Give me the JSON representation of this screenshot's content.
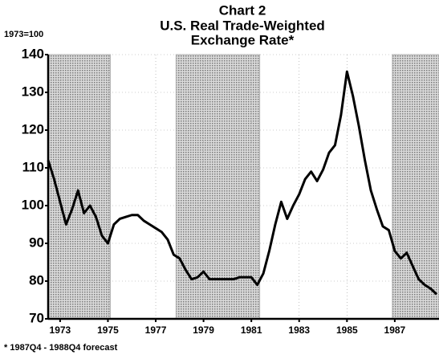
{
  "chart_data": {
    "type": "line",
    "title": "Chart 2",
    "subtitle": [
      "U.S. Real Trade-Weighted",
      "Exchange Rate*"
    ],
    "y_label": "1973=100",
    "footnote": "* 1987Q4 - 1988Q4 forecast",
    "x": [
      1972.5,
      1972.75,
      1973,
      1973.25,
      1973.5,
      1973.75,
      1974,
      1974.25,
      1974.5,
      1974.75,
      1975,
      1975.25,
      1975.5,
      1975.75,
      1976,
      1976.25,
      1976.5,
      1976.75,
      1977,
      1977.25,
      1977.5,
      1977.75,
      1978,
      1978.25,
      1978.5,
      1978.75,
      1979,
      1979.25,
      1979.5,
      1979.75,
      1980,
      1980.25,
      1980.5,
      1980.75,
      1981,
      1981.25,
      1981.5,
      1981.75,
      1982,
      1982.25,
      1982.5,
      1982.75,
      1983,
      1983.25,
      1983.5,
      1983.75,
      1984,
      1984.25,
      1984.5,
      1984.75,
      1985,
      1985.25,
      1985.5,
      1985.75,
      1986,
      1986.25,
      1986.5,
      1986.75,
      1987,
      1987.25,
      1987.5,
      1987.75,
      1988,
      1988.25,
      1988.5,
      1988.75
    ],
    "series": [
      {
        "color": "#000000",
        "values": [
          112,
          107,
          101,
          95,
          99,
          104,
          98,
          100,
          97,
          92,
          90,
          95,
          96.5,
          97,
          97.5,
          97.5,
          96,
          95,
          94,
          93,
          91,
          87,
          86,
          83,
          80.5,
          81,
          82.5,
          80.5,
          80.5,
          80.5,
          80.5,
          80.5,
          81,
          81,
          81,
          79,
          82,
          88,
          95,
          101,
          96.5,
          100,
          103,
          107,
          109,
          106.5,
          109.5,
          114,
          116,
          124,
          135.5,
          129,
          121,
          112,
          104,
          99,
          94.5,
          93.5,
          88,
          86,
          87.5,
          84,
          80.5,
          79,
          78,
          76.5
        ]
      }
    ],
    "shaded_periods": [
      [
        1972.5,
        1975.1
      ],
      [
        1977.85,
        1981.35
      ],
      [
        1986.9,
        1988.85
      ]
    ],
    "shade_color": "#a8a8a8",
    "xlim": [
      1972.5,
      1988.85
    ],
    "xticks": [
      1973,
      1975,
      1977,
      1979,
      1981,
      1983,
      1985,
      1987
    ],
    "ylim": [
      70,
      140
    ],
    "yticks": [
      70,
      80,
      90,
      100,
      110,
      120,
      130,
      140
    ],
    "grid": true
  }
}
